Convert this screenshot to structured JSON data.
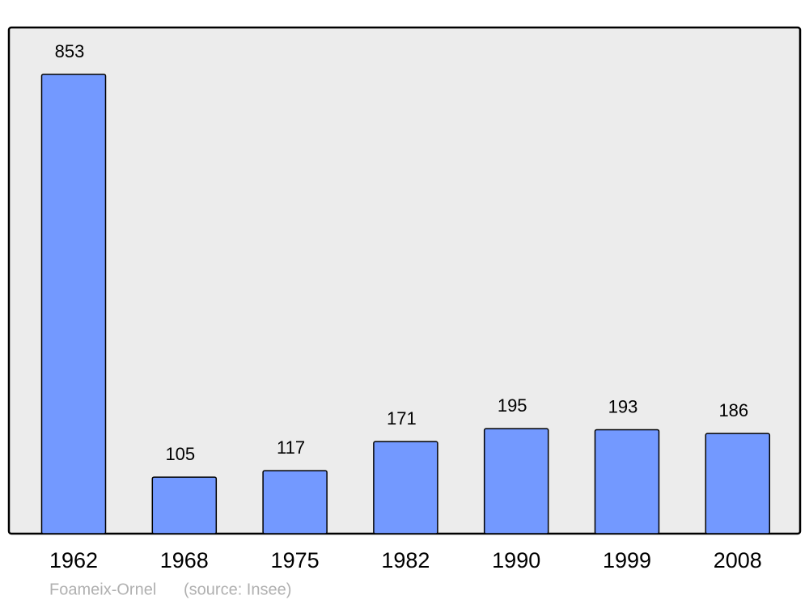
{
  "chart_data": {
    "type": "bar",
    "categories": [
      "1962",
      "1968",
      "1975",
      "1982",
      "1990",
      "1999",
      "2008"
    ],
    "values": [
      853,
      105,
      117,
      171,
      195,
      193,
      186
    ],
    "color": "#7399ff",
    "caption": "Foameix-Ornel",
    "source": "(source: Insee)"
  }
}
